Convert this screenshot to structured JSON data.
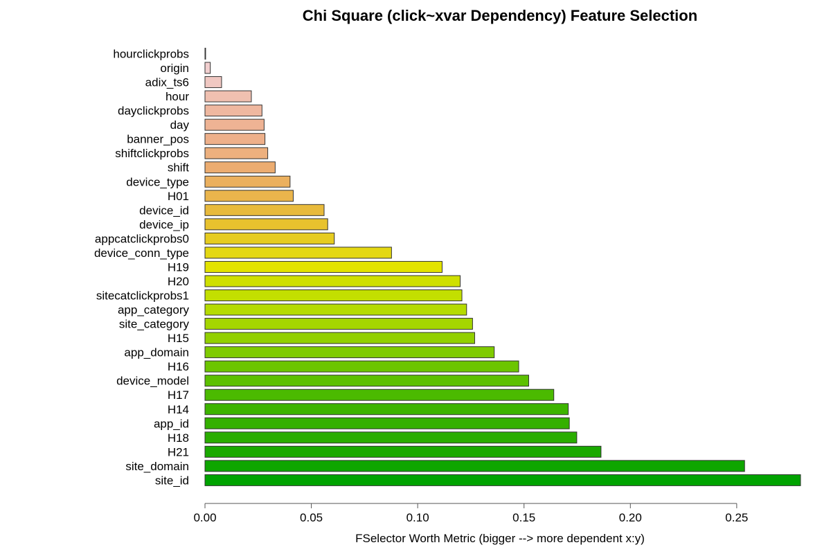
{
  "chart_data": {
    "type": "bar",
    "orientation": "horizontal",
    "title": "Chi Square (click~xvar Dependency) Feature Selection",
    "xlabel": "FSelector Worth Metric (bigger --> more dependent x:y)",
    "ylabel": "",
    "xlim": [
      0,
      0.28
    ],
    "xticks": [
      0.0,
      0.05,
      0.1,
      0.15,
      0.2,
      0.25
    ],
    "xtick_labels": [
      "0.00",
      "0.05",
      "0.10",
      "0.15",
      "0.20",
      "0.25"
    ],
    "grid": false,
    "categories": [
      "hourclickprobs",
      "origin",
      "adix_ts6",
      "hour",
      "dayclickprobs",
      "day",
      "banner_pos",
      "shiftclickprobs",
      "shift",
      "device_type",
      "H01",
      "device_id",
      "device_ip",
      "appcatclickprobs0",
      "device_conn_type",
      "H19",
      "H20",
      "sitecatclickprobs1",
      "app_category",
      "site_category",
      "H15",
      "app_domain",
      "H16",
      "device_model",
      "H17",
      "H14",
      "app_id",
      "H18",
      "H21",
      "site_domain",
      "site_id"
    ],
    "values": [
      0.0003,
      0.0025,
      0.0078,
      0.0218,
      0.0268,
      0.0278,
      0.0282,
      0.0295,
      0.033,
      0.04,
      0.0415,
      0.056,
      0.0577,
      0.0608,
      0.0877,
      0.1115,
      0.12,
      0.1208,
      0.123,
      0.1258,
      0.1268,
      0.136,
      0.1475,
      0.1522,
      0.164,
      0.1708,
      0.1713,
      0.1748,
      0.1862,
      0.2537,
      0.28
    ],
    "colors": [
      "#f2d8d8",
      "#f2cfcf",
      "#f0c8c2",
      "#f0c0b0",
      "#efb8a0",
      "#eeb394",
      "#eeb08a",
      "#edb07e",
      "#ecac70",
      "#ebb05e",
      "#eab54c",
      "#e8ba3c",
      "#e8c22e",
      "#e6cc20",
      "#e4d812",
      "#e3e300",
      "#cfe000",
      "#c3df00",
      "#b5db00",
      "#a5d600",
      "#92d000",
      "#7fcb00",
      "#6cc500",
      "#5cc000",
      "#4bba00",
      "#3db400",
      "#34b000",
      "#2aad00",
      "#1aa900",
      "#0ea600",
      "#00a300"
    ]
  }
}
